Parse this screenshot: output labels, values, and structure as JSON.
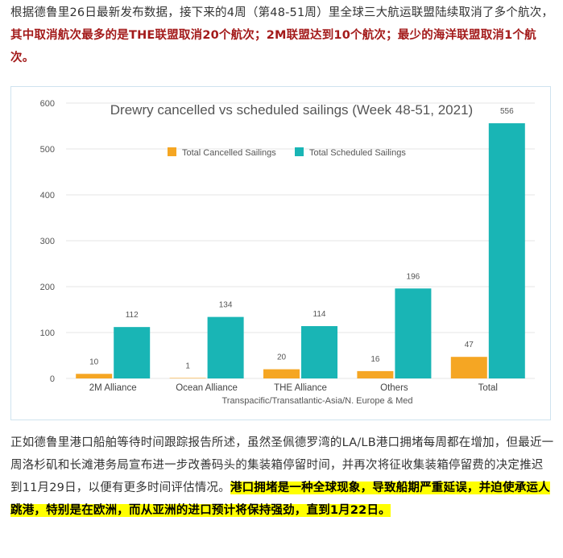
{
  "intro": {
    "plain": "根据德鲁里26日最新发布数据，接下来的4周（第48-51周）里全球三大航运联盟陆续取消了多个航次，",
    "bold": "其中取消航次最多的是THE联盟取消20个航次；2M联盟达到10个航次；最少的海洋联盟取消1个航次。"
  },
  "outro": {
    "plain": "正如德鲁里港口船舶等待时间跟踪报告所述，虽然圣佩德罗湾的LA/LB港口拥堵每周都在增加，但最近一周洛杉矶和长滩港务局宣布进一步改善码头的集装箱停留时间，并再次将征收集装箱停留费的决定推迟到11月29日，以便有更多时间评估情况。",
    "highlight": "港口拥堵是一种全球现象，导致船期严重延误，并迫使承运人跳港，特别是在欧洲，而从亚洲的进口预计将保持强劲，直到1月22日。"
  },
  "colors": {
    "cancelled": "#f5a623",
    "scheduled": "#19b5b5",
    "grid": "#e6e6e6",
    "red_text": "#a31a1a",
    "highlight": "#ffff00"
  },
  "chart_data": {
    "type": "bar",
    "title": "Drewry cancelled vs scheduled sailings (Week 48-51, 2021)",
    "xlabel": "Transpacific/Transatlantic-Asia/N. Europe & Med",
    "ylabel": "",
    "categories": [
      "2M Alliance",
      "Ocean Alliance",
      "THE Alliance",
      "Others",
      "Total"
    ],
    "series": [
      {
        "name": "Total Cancelled Sailings",
        "values": [
          10,
          1,
          20,
          16,
          47
        ]
      },
      {
        "name": "Total Scheduled Sailings",
        "values": [
          112,
          134,
          114,
          196,
          556
        ]
      }
    ],
    "ylim": [
      0,
      600
    ],
    "yticks": [
      "0",
      "100",
      "200",
      "300",
      "400",
      "500",
      "600"
    ],
    "grid": true,
    "legend_position": "top-center"
  }
}
